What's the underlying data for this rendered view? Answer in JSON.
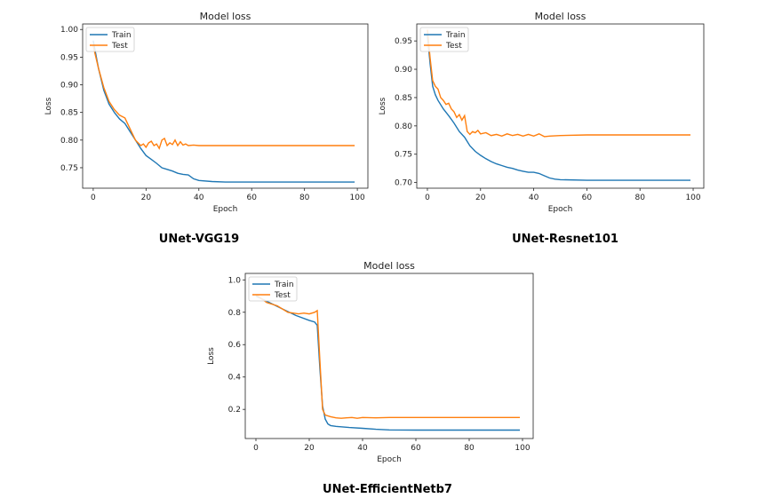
{
  "figure": {
    "colors": {
      "train": "#1f77b4",
      "test": "#ff7f0e"
    }
  },
  "chart_data": [
    {
      "type": "line",
      "title": "Model loss",
      "caption": "UNet-VGG19",
      "xlabel": "Epoch",
      "ylabel": "Loss",
      "legend_position": "top-left",
      "xlim": [
        -4,
        104
      ],
      "ylim": [
        0.713,
        1.01
      ],
      "xticks": [
        0,
        20,
        40,
        60,
        80,
        100
      ],
      "yticks": [
        0.75,
        0.8,
        0.85,
        0.9,
        0.95,
        1.0
      ],
      "ytick_labels": [
        "0.75",
        "0.80",
        "0.85",
        "0.90",
        "0.95",
        "1.00"
      ],
      "series": [
        {
          "name": "Train",
          "key": "train",
          "x": [
            0,
            2,
            4,
            6,
            8,
            10,
            12,
            14,
            16,
            18,
            20,
            22,
            24,
            26,
            28,
            30,
            32,
            34,
            36,
            38,
            40,
            45,
            50,
            60,
            70,
            80,
            90,
            99
          ],
          "y": [
            0.98,
            0.93,
            0.89,
            0.865,
            0.85,
            0.838,
            0.83,
            0.815,
            0.8,
            0.785,
            0.772,
            0.765,
            0.758,
            0.75,
            0.747,
            0.744,
            0.74,
            0.738,
            0.737,
            0.73,
            0.727,
            0.725,
            0.724,
            0.724,
            0.724,
            0.724,
            0.724,
            0.724
          ]
        },
        {
          "name": "Test",
          "key": "test",
          "x": [
            0,
            2,
            4,
            6,
            8,
            10,
            12,
            14,
            16,
            18,
            19,
            20,
            21,
            22,
            23,
            24,
            25,
            26,
            27,
            28,
            29,
            30,
            31,
            32,
            33,
            34,
            35,
            36,
            38,
            40,
            45,
            50,
            60,
            70,
            80,
            90,
            99
          ],
          "y": [
            0.97,
            0.93,
            0.895,
            0.87,
            0.855,
            0.845,
            0.84,
            0.82,
            0.8,
            0.79,
            0.793,
            0.787,
            0.795,
            0.798,
            0.79,
            0.793,
            0.785,
            0.8,
            0.803,
            0.79,
            0.795,
            0.792,
            0.8,
            0.79,
            0.797,
            0.791,
            0.793,
            0.79,
            0.791,
            0.79,
            0.79,
            0.79,
            0.79,
            0.79,
            0.79,
            0.79,
            0.79
          ]
        }
      ]
    },
    {
      "type": "line",
      "title": "Model loss",
      "caption": "UNet-Resnet101",
      "xlabel": "Epoch",
      "ylabel": "Loss",
      "legend_position": "top-left",
      "xlim": [
        -4,
        104
      ],
      "ylim": [
        0.69,
        0.98
      ],
      "xticks": [
        0,
        20,
        40,
        60,
        80,
        100
      ],
      "yticks": [
        0.7,
        0.75,
        0.8,
        0.85,
        0.9,
        0.95
      ],
      "ytick_labels": [
        "0.70",
        "0.75",
        "0.80",
        "0.85",
        "0.90",
        "0.95"
      ],
      "series": [
        {
          "name": "Train",
          "key": "train",
          "x": [
            0,
            1,
            2,
            3,
            4,
            6,
            8,
            10,
            12,
            14,
            16,
            18,
            20,
            22,
            24,
            26,
            28,
            30,
            32,
            34,
            36,
            38,
            40,
            42,
            44,
            46,
            48,
            50,
            60,
            70,
            80,
            90,
            99
          ],
          "y": [
            0.96,
            0.91,
            0.87,
            0.855,
            0.845,
            0.83,
            0.818,
            0.805,
            0.79,
            0.78,
            0.765,
            0.755,
            0.748,
            0.742,
            0.737,
            0.733,
            0.73,
            0.727,
            0.725,
            0.722,
            0.72,
            0.718,
            0.718,
            0.716,
            0.712,
            0.708,
            0.706,
            0.705,
            0.704,
            0.704,
            0.704,
            0.704,
            0.704
          ]
        },
        {
          "name": "Test",
          "key": "test",
          "x": [
            0,
            1,
            2,
            3,
            4,
            5,
            6,
            7,
            8,
            9,
            10,
            11,
            12,
            13,
            14,
            15,
            16,
            17,
            18,
            19,
            20,
            22,
            24,
            26,
            28,
            30,
            32,
            34,
            36,
            38,
            40,
            42,
            44,
            46,
            50,
            60,
            70,
            80,
            90,
            99
          ],
          "y": [
            0.97,
            0.92,
            0.88,
            0.87,
            0.865,
            0.85,
            0.845,
            0.838,
            0.84,
            0.83,
            0.825,
            0.815,
            0.82,
            0.81,
            0.818,
            0.79,
            0.785,
            0.79,
            0.788,
            0.792,
            0.786,
            0.788,
            0.783,
            0.785,
            0.782,
            0.786,
            0.783,
            0.785,
            0.782,
            0.785,
            0.782,
            0.786,
            0.781,
            0.782,
            0.783,
            0.784,
            0.784,
            0.784,
            0.784,
            0.784
          ]
        }
      ]
    },
    {
      "type": "line",
      "title": "Model loss",
      "caption": "UNet-EfficientNetb7",
      "xlabel": "Epoch",
      "ylabel": "Loss",
      "legend_position": "top-left",
      "xlim": [
        -4,
        104
      ],
      "ylim": [
        0.02,
        1.04
      ],
      "xticks": [
        0,
        20,
        40,
        60,
        80,
        100
      ],
      "yticks": [
        0.2,
        0.4,
        0.6,
        0.8,
        1.0
      ],
      "ytick_labels": [
        "0.2",
        "0.4",
        "0.6",
        "0.8",
        "1.0"
      ],
      "series": [
        {
          "name": "Train",
          "key": "train",
          "x": [
            0,
            5,
            10,
            15,
            20,
            22,
            23,
            24,
            25,
            26,
            27,
            28,
            30,
            35,
            40,
            45,
            50,
            60,
            70,
            80,
            90,
            99
          ],
          "y": [
            0.9,
            0.86,
            0.82,
            0.78,
            0.75,
            0.74,
            0.72,
            0.45,
            0.22,
            0.14,
            0.11,
            0.1,
            0.095,
            0.088,
            0.083,
            0.077,
            0.073,
            0.072,
            0.072,
            0.072,
            0.072,
            0.072
          ]
        },
        {
          "name": "Test",
          "key": "test",
          "x": [
            0,
            4,
            8,
            12,
            14,
            16,
            18,
            20,
            22,
            23,
            24,
            25,
            26,
            28,
            30,
            32,
            34,
            36,
            38,
            40,
            45,
            50,
            60,
            70,
            80,
            90,
            99
          ],
          "y": [
            0.91,
            0.86,
            0.84,
            0.8,
            0.795,
            0.79,
            0.795,
            0.79,
            0.8,
            0.81,
            0.5,
            0.2,
            0.165,
            0.155,
            0.148,
            0.145,
            0.148,
            0.15,
            0.145,
            0.15,
            0.148,
            0.15,
            0.15,
            0.15,
            0.15,
            0.15,
            0.15
          ]
        }
      ]
    }
  ]
}
